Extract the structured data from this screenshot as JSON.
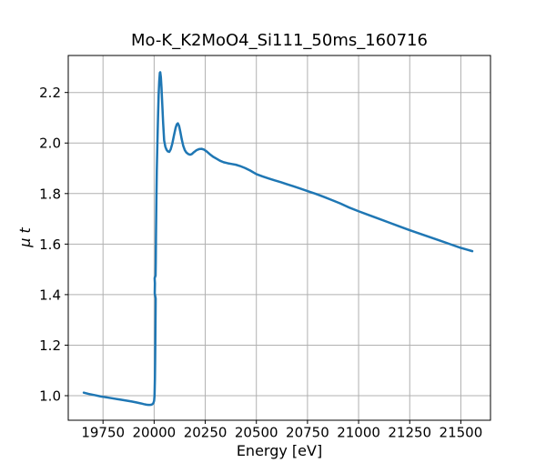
{
  "chart_data": {
    "type": "line",
    "title": "Mo-K_K2MoO4_Si111_50ms_160716",
    "xlabel": "Energy [eV]",
    "ylabel": "μ t",
    "xlim": [
      19580,
      21645
    ],
    "ylim": [
      0.9028,
      2.3465
    ],
    "grid": true,
    "legend": "none",
    "x_ticks": [
      19750,
      20000,
      20250,
      20500,
      20750,
      21000,
      21250,
      21500
    ],
    "x_tick_labels": [
      "19750",
      "20000",
      "20250",
      "20500",
      "20750",
      "21000",
      "21250",
      "21500"
    ],
    "y_ticks": [
      1.0,
      1.2,
      1.4,
      1.6,
      1.8,
      2.0,
      2.2
    ],
    "y_tick_labels": [
      "1.0",
      "1.2",
      "1.4",
      "1.6",
      "1.8",
      "2.0",
      "2.2"
    ],
    "line_color": "#1f77b4",
    "line_width": 2.5,
    "grid_color": "#b0b0b0",
    "spine_color": "#000000",
    "background_color": "#ffffff",
    "series": [
      {
        "name": "mu_t_absorption",
        "points": [
          [
            19656,
            1.012
          ],
          [
            19680,
            1.007
          ],
          [
            19710,
            1.002
          ],
          [
            19740,
            0.997
          ],
          [
            19770,
            0.993
          ],
          [
            19800,
            0.989
          ],
          [
            19830,
            0.985
          ],
          [
            19860,
            0.981
          ],
          [
            19890,
            0.977
          ],
          [
            19915,
            0.973
          ],
          [
            19935,
            0.9695
          ],
          [
            19950,
            0.9665
          ],
          [
            19962,
            0.9645
          ],
          [
            19972,
            0.9635
          ],
          [
            19980,
            0.9635
          ],
          [
            19987,
            0.9645
          ],
          [
            19993,
            0.967
          ],
          [
            19997,
            0.972
          ],
          [
            20000,
            0.98
          ],
          [
            20002,
            1.0
          ],
          [
            20004,
            1.07
          ],
          [
            20005,
            1.14
          ],
          [
            20006,
            1.23
          ],
          [
            20007,
            1.33
          ],
          [
            20007.5,
            1.385
          ],
          [
            20003,
            1.405
          ],
          [
            20004,
            1.445
          ],
          [
            20002.5,
            1.465
          ],
          [
            20007,
            1.475
          ],
          [
            20008,
            1.53
          ],
          [
            20009,
            1.63
          ],
          [
            20011,
            1.77
          ],
          [
            20013,
            1.89
          ],
          [
            20016,
            2.0
          ],
          [
            20019,
            2.1
          ],
          [
            20022,
            2.19
          ],
          [
            20025,
            2.245
          ],
          [
            20028,
            2.278
          ],
          [
            20030,
            2.28
          ],
          [
            20033,
            2.26
          ],
          [
            20036,
            2.22
          ],
          [
            20040,
            2.15
          ],
          [
            20044,
            2.08
          ],
          [
            20049,
            2.01
          ],
          [
            20055,
            1.985
          ],
          [
            20061,
            1.973
          ],
          [
            20067,
            1.967
          ],
          [
            20074,
            1.965
          ],
          [
            20081,
            1.975
          ],
          [
            20089,
            1.998
          ],
          [
            20097,
            2.03
          ],
          [
            20105,
            2.06
          ],
          [
            20111,
            2.074
          ],
          [
            20116,
            2.078
          ],
          [
            20122,
            2.068
          ],
          [
            20128,
            2.045
          ],
          [
            20135,
            2.015
          ],
          [
            20142,
            1.99
          ],
          [
            20150,
            1.972
          ],
          [
            20158,
            1.962
          ],
          [
            20168,
            1.956
          ],
          [
            20176,
            1.954
          ],
          [
            20184,
            1.956
          ],
          [
            20195,
            1.964
          ],
          [
            20208,
            1.972
          ],
          [
            20220,
            1.976
          ],
          [
            20232,
            1.977
          ],
          [
            20244,
            1.974
          ],
          [
            20258,
            1.966
          ],
          [
            20272,
            1.956
          ],
          [
            20288,
            1.946
          ],
          [
            20305,
            1.938
          ],
          [
            20322,
            1.93
          ],
          [
            20340,
            1.924
          ],
          [
            20360,
            1.92
          ],
          [
            20380,
            1.917
          ],
          [
            20400,
            1.914
          ],
          [
            20420,
            1.909
          ],
          [
            20445,
            1.901
          ],
          [
            20470,
            1.891
          ],
          [
            20500,
            1.877
          ],
          [
            20530,
            1.868
          ],
          [
            20560,
            1.86
          ],
          [
            20590,
            1.852
          ],
          [
            20620,
            1.845
          ],
          [
            20650,
            1.837
          ],
          [
            20680,
            1.829
          ],
          [
            20710,
            1.821
          ],
          [
            20750,
            1.81
          ],
          [
            20790,
            1.799
          ],
          [
            20830,
            1.787
          ],
          [
            20870,
            1.774
          ],
          [
            20910,
            1.761
          ],
          [
            20950,
            1.746
          ],
          [
            21000,
            1.73
          ],
          [
            21050,
            1.715
          ],
          [
            21100,
            1.7
          ],
          [
            21150,
            1.685
          ],
          [
            21200,
            1.67
          ],
          [
            21250,
            1.655
          ],
          [
            21300,
            1.641
          ],
          [
            21350,
            1.627
          ],
          [
            21400,
            1.613
          ],
          [
            21450,
            1.599
          ],
          [
            21500,
            1.585
          ],
          [
            21530,
            1.578
          ],
          [
            21556,
            1.572
          ]
        ]
      }
    ]
  }
}
